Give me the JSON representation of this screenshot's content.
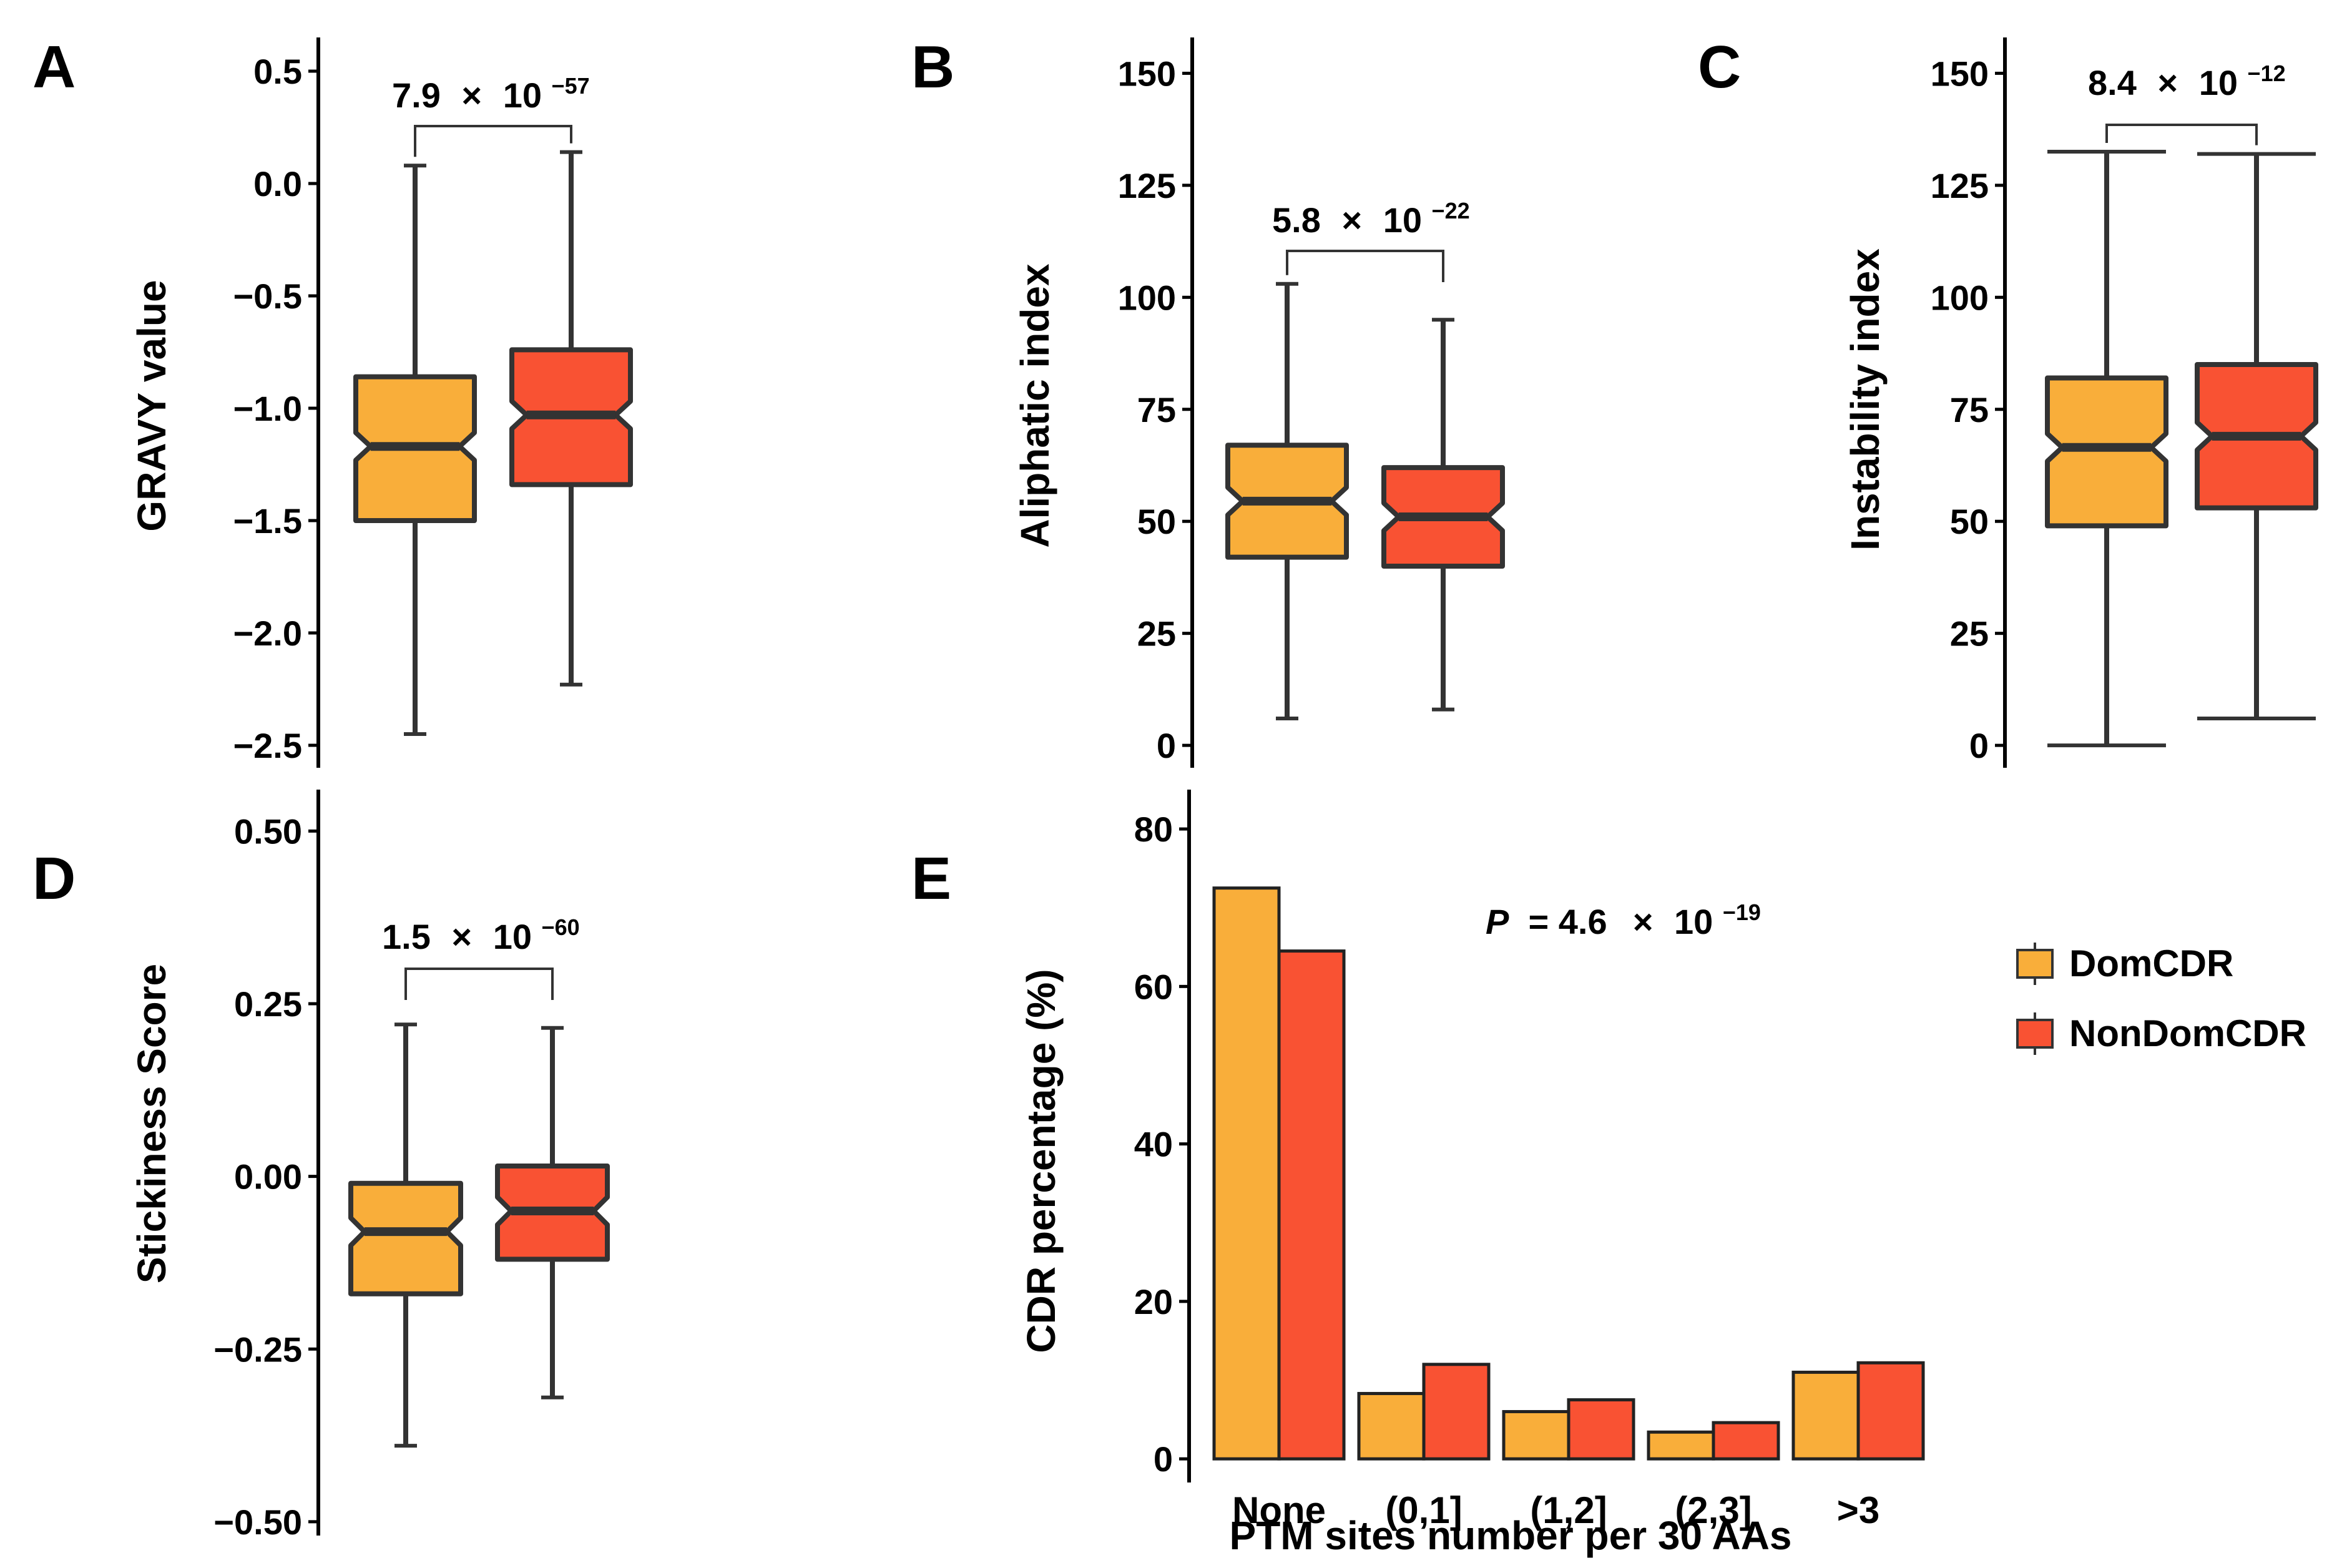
{
  "colors": {
    "domcdr": "#F9AE3A",
    "nondomcdr": "#F95233",
    "stroke": "#333333",
    "axis": "#000000"
  },
  "legend": {
    "items": [
      {
        "key": "domcdr",
        "label": "DomCDR"
      },
      {
        "key": "nondomcdr",
        "label": "NonDomCDR"
      }
    ]
  },
  "chart_data": [
    {
      "panel": "A",
      "type": "boxplot",
      "ylabel": "GRAVY value",
      "ylim": [
        -2.6,
        0.65
      ],
      "ticks": [
        0.5,
        0.0,
        -0.5,
        -1.0,
        -1.5,
        -2.0,
        -2.5
      ],
      "tick_labels": [
        "0.5",
        "0.0",
        "−0.5",
        "−1.0",
        "−1.5",
        "−2.0",
        "−2.5"
      ],
      "series": [
        {
          "name": "DomCDR",
          "min": -2.45,
          "q1": -1.5,
          "median": -1.17,
          "q3": -0.86,
          "max": 0.08
        },
        {
          "name": "NonDomCDR",
          "min": -2.23,
          "q1": -1.34,
          "median": -1.03,
          "q3": -0.74,
          "max": 0.14
        }
      ],
      "pvalue": {
        "mantissa": "7.9",
        "times": "×",
        "base": "10",
        "exponent": "−57"
      }
    },
    {
      "panel": "B",
      "type": "boxplot",
      "ylabel": "Aliphatic index",
      "ylim": [
        -5,
        158
      ],
      "ticks": [
        150,
        125,
        100,
        75,
        50,
        25,
        0
      ],
      "tick_labels": [
        "150",
        "125",
        "100",
        "75",
        "50",
        "25",
        "0"
      ],
      "series": [
        {
          "name": "DomCDR",
          "min": 6,
          "q1": 42,
          "median": 54.5,
          "q3": 67,
          "max": 103
        },
        {
          "name": "NonDomCDR",
          "min": 8,
          "q1": 40,
          "median": 51,
          "q3": 62,
          "max": 95
        }
      ],
      "pvalue": {
        "mantissa": "5.8",
        "times": "×",
        "base": "10",
        "exponent": "−22"
      }
    },
    {
      "panel": "C",
      "type": "boxplot",
      "ylabel": "Instability index",
      "ylim": [
        -5,
        158
      ],
      "ticks": [
        150,
        125,
        100,
        75,
        50,
        25,
        0
      ],
      "tick_labels": [
        "150",
        "125",
        "100",
        "75",
        "50",
        "25",
        "0"
      ],
      "series": [
        {
          "name": "DomCDR",
          "min": 0,
          "q1": 49,
          "median": 66.5,
          "q3": 82,
          "max": 132.5
        },
        {
          "name": "NonDomCDR",
          "min": 6,
          "q1": 53,
          "median": 69,
          "q3": 85,
          "max": 132
        }
      ],
      "pvalue": {
        "mantissa": "8.4",
        "times": "×",
        "base": "10",
        "exponent": "−12"
      }
    },
    {
      "panel": "D",
      "type": "boxplot",
      "ylabel": "Stickiness Score",
      "ylim": [
        -0.52,
        0.56
      ],
      "ticks": [
        0.5,
        0.25,
        0.0,
        -0.25,
        -0.5
      ],
      "tick_labels": [
        "0.50",
        "0.25",
        "0.00",
        "−0.25",
        "−0.50"
      ],
      "series": [
        {
          "name": "DomCDR",
          "min": -0.39,
          "q1": -0.17,
          "median": -0.08,
          "q3": -0.01,
          "max": 0.22
        },
        {
          "name": "NonDomCDR",
          "min": -0.32,
          "q1": -0.12,
          "median": -0.05,
          "q3": 0.015,
          "max": 0.215
        }
      ],
      "pvalue": {
        "mantissa": "1.5",
        "times": "×",
        "base": "10",
        "exponent": "−60"
      }
    },
    {
      "panel": "E",
      "type": "bar",
      "ylabel": "CDR percentage (%)",
      "xlabel": "PTM sites number per 30 AAs",
      "ylim": [
        -3,
        85
      ],
      "ticks": [
        80,
        60,
        40,
        20,
        0
      ],
      "tick_labels": [
        "80",
        "60",
        "40",
        "20",
        "0"
      ],
      "categories": [
        "None",
        "(0,1]",
        "(1,2]",
        "(2,3]",
        ">3"
      ],
      "series": [
        {
          "name": "DomCDR",
          "values": [
            72.5,
            8.3,
            6.0,
            3.4,
            11.0
          ]
        },
        {
          "name": "NonDomCDR",
          "values": [
            64.5,
            12.0,
            7.5,
            4.6,
            12.2
          ]
        }
      ],
      "pvalue": {
        "prefix": "P",
        "equals": " = 4.6 ",
        "times": "×",
        "base": "10",
        "exponent": "−19"
      }
    }
  ]
}
